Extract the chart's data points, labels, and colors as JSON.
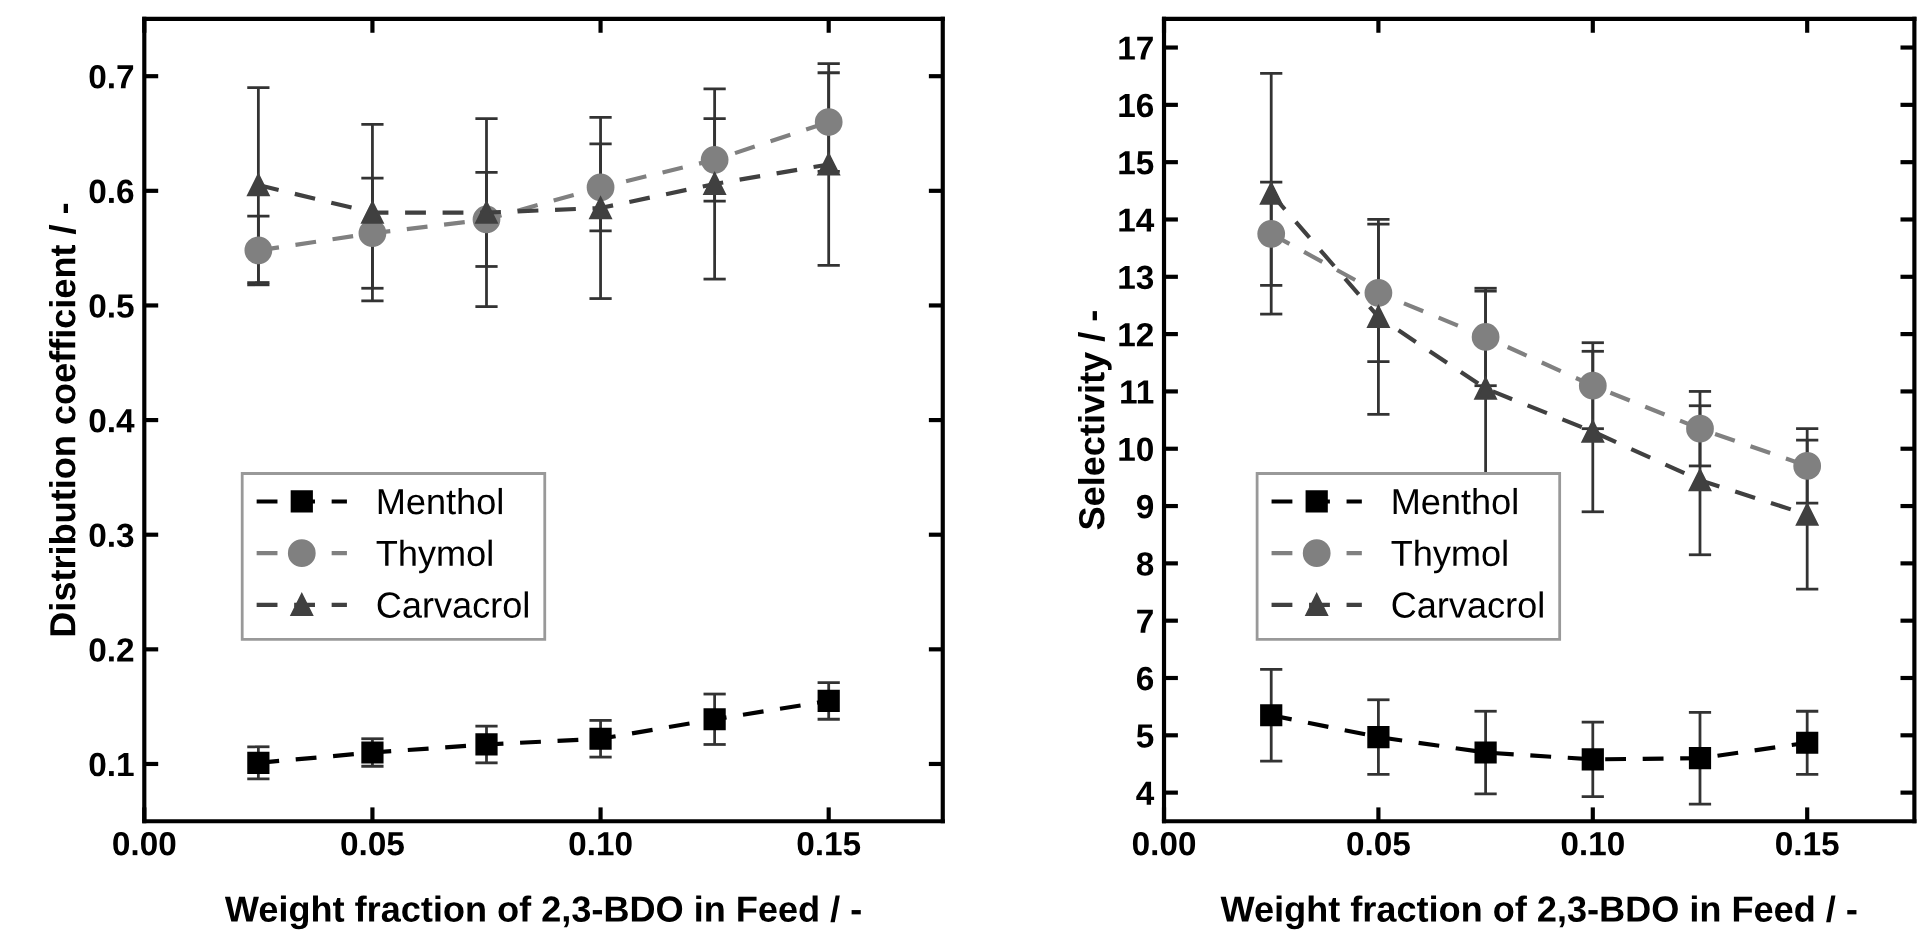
{
  "chart_data": [
    {
      "type": "line",
      "xlabel": "Weight fraction of 2,3-BDO in Feed / -",
      "ylabel": "Distribution coefficient / -",
      "x": [
        0.025,
        0.05,
        0.075,
        0.1,
        0.125,
        0.15
      ],
      "xlim": [
        0,
        0.175
      ],
      "xticks": [
        {
          "value": 0,
          "label": "0.00"
        },
        {
          "value": 0.05,
          "label": "0.05"
        },
        {
          "value": 0.1,
          "label": "0.10"
        },
        {
          "value": 0.15,
          "label": "0.15"
        }
      ],
      "ylim": [
        0.05,
        0.75
      ],
      "yticks": [
        0.1,
        0.2,
        0.3,
        0.4,
        0.5,
        0.6,
        0.7
      ],
      "line_style": "dashed",
      "legend": "center left",
      "grid": false,
      "series": [
        {
          "name": "Menthol",
          "color": "#000000",
          "marker": "square",
          "values": [
            0.101,
            0.11,
            0.117,
            0.122,
            0.139,
            0.155
          ],
          "errors": [
            0.014,
            0.012,
            0.016,
            0.016,
            0.022,
            0.016
          ]
        },
        {
          "name": "Thymol",
          "color": "#808080",
          "marker": "circle",
          "values": [
            0.548,
            0.563,
            0.575,
            0.603,
            0.627,
            0.66
          ],
          "errors": [
            0.03,
            0.048,
            0.041,
            0.038,
            0.036,
            0.043
          ]
        },
        {
          "name": "Carvacrol",
          "color": "#404040",
          "marker": "triangle",
          "values": [
            0.605,
            0.581,
            0.581,
            0.585,
            0.606,
            0.623
          ],
          "errors": [
            0.085,
            0.077,
            0.082,
            0.079,
            0.083,
            0.088
          ]
        }
      ]
    },
    {
      "type": "line",
      "xlabel": "Weight fraction of 2,3-BDO in Feed / -",
      "ylabel": "Selectivity / -",
      "x": [
        0.025,
        0.05,
        0.075,
        0.1,
        0.125,
        0.15
      ],
      "xlim": [
        0,
        0.175
      ],
      "xticks": [
        {
          "value": 0,
          "label": "0.00"
        },
        {
          "value": 0.05,
          "label": "0.05"
        },
        {
          "value": 0.1,
          "label": "0.10"
        },
        {
          "value": 0.15,
          "label": "0.15"
        }
      ],
      "ylim": [
        3.5,
        17.5
      ],
      "yticks": [
        4,
        5,
        6,
        7,
        8,
        9,
        10,
        11,
        12,
        13,
        14,
        15,
        16,
        17
      ],
      "line_style": "dashed",
      "legend": "center left",
      "grid": false,
      "series": [
        {
          "name": "Menthol",
          "color": "#000000",
          "marker": "square",
          "values": [
            5.35,
            4.97,
            4.7,
            4.58,
            4.6,
            4.87
          ],
          "errors": [
            0.8,
            0.65,
            0.72,
            0.65,
            0.8,
            0.55
          ]
        },
        {
          "name": "Thymol",
          "color": "#808080",
          "marker": "circle",
          "values": [
            13.75,
            12.72,
            11.95,
            11.1,
            10.35,
            9.7
          ],
          "errors": [
            0.9,
            1.2,
            0.85,
            0.75,
            0.65,
            0.65
          ]
        },
        {
          "name": "Carvacrol",
          "color": "#404040",
          "marker": "triangle",
          "values": [
            14.45,
            12.3,
            11.05,
            10.3,
            9.45,
            8.85
          ],
          "errors": [
            2.1,
            1.7,
            1.7,
            1.4,
            1.3,
            1.3
          ]
        }
      ]
    }
  ]
}
